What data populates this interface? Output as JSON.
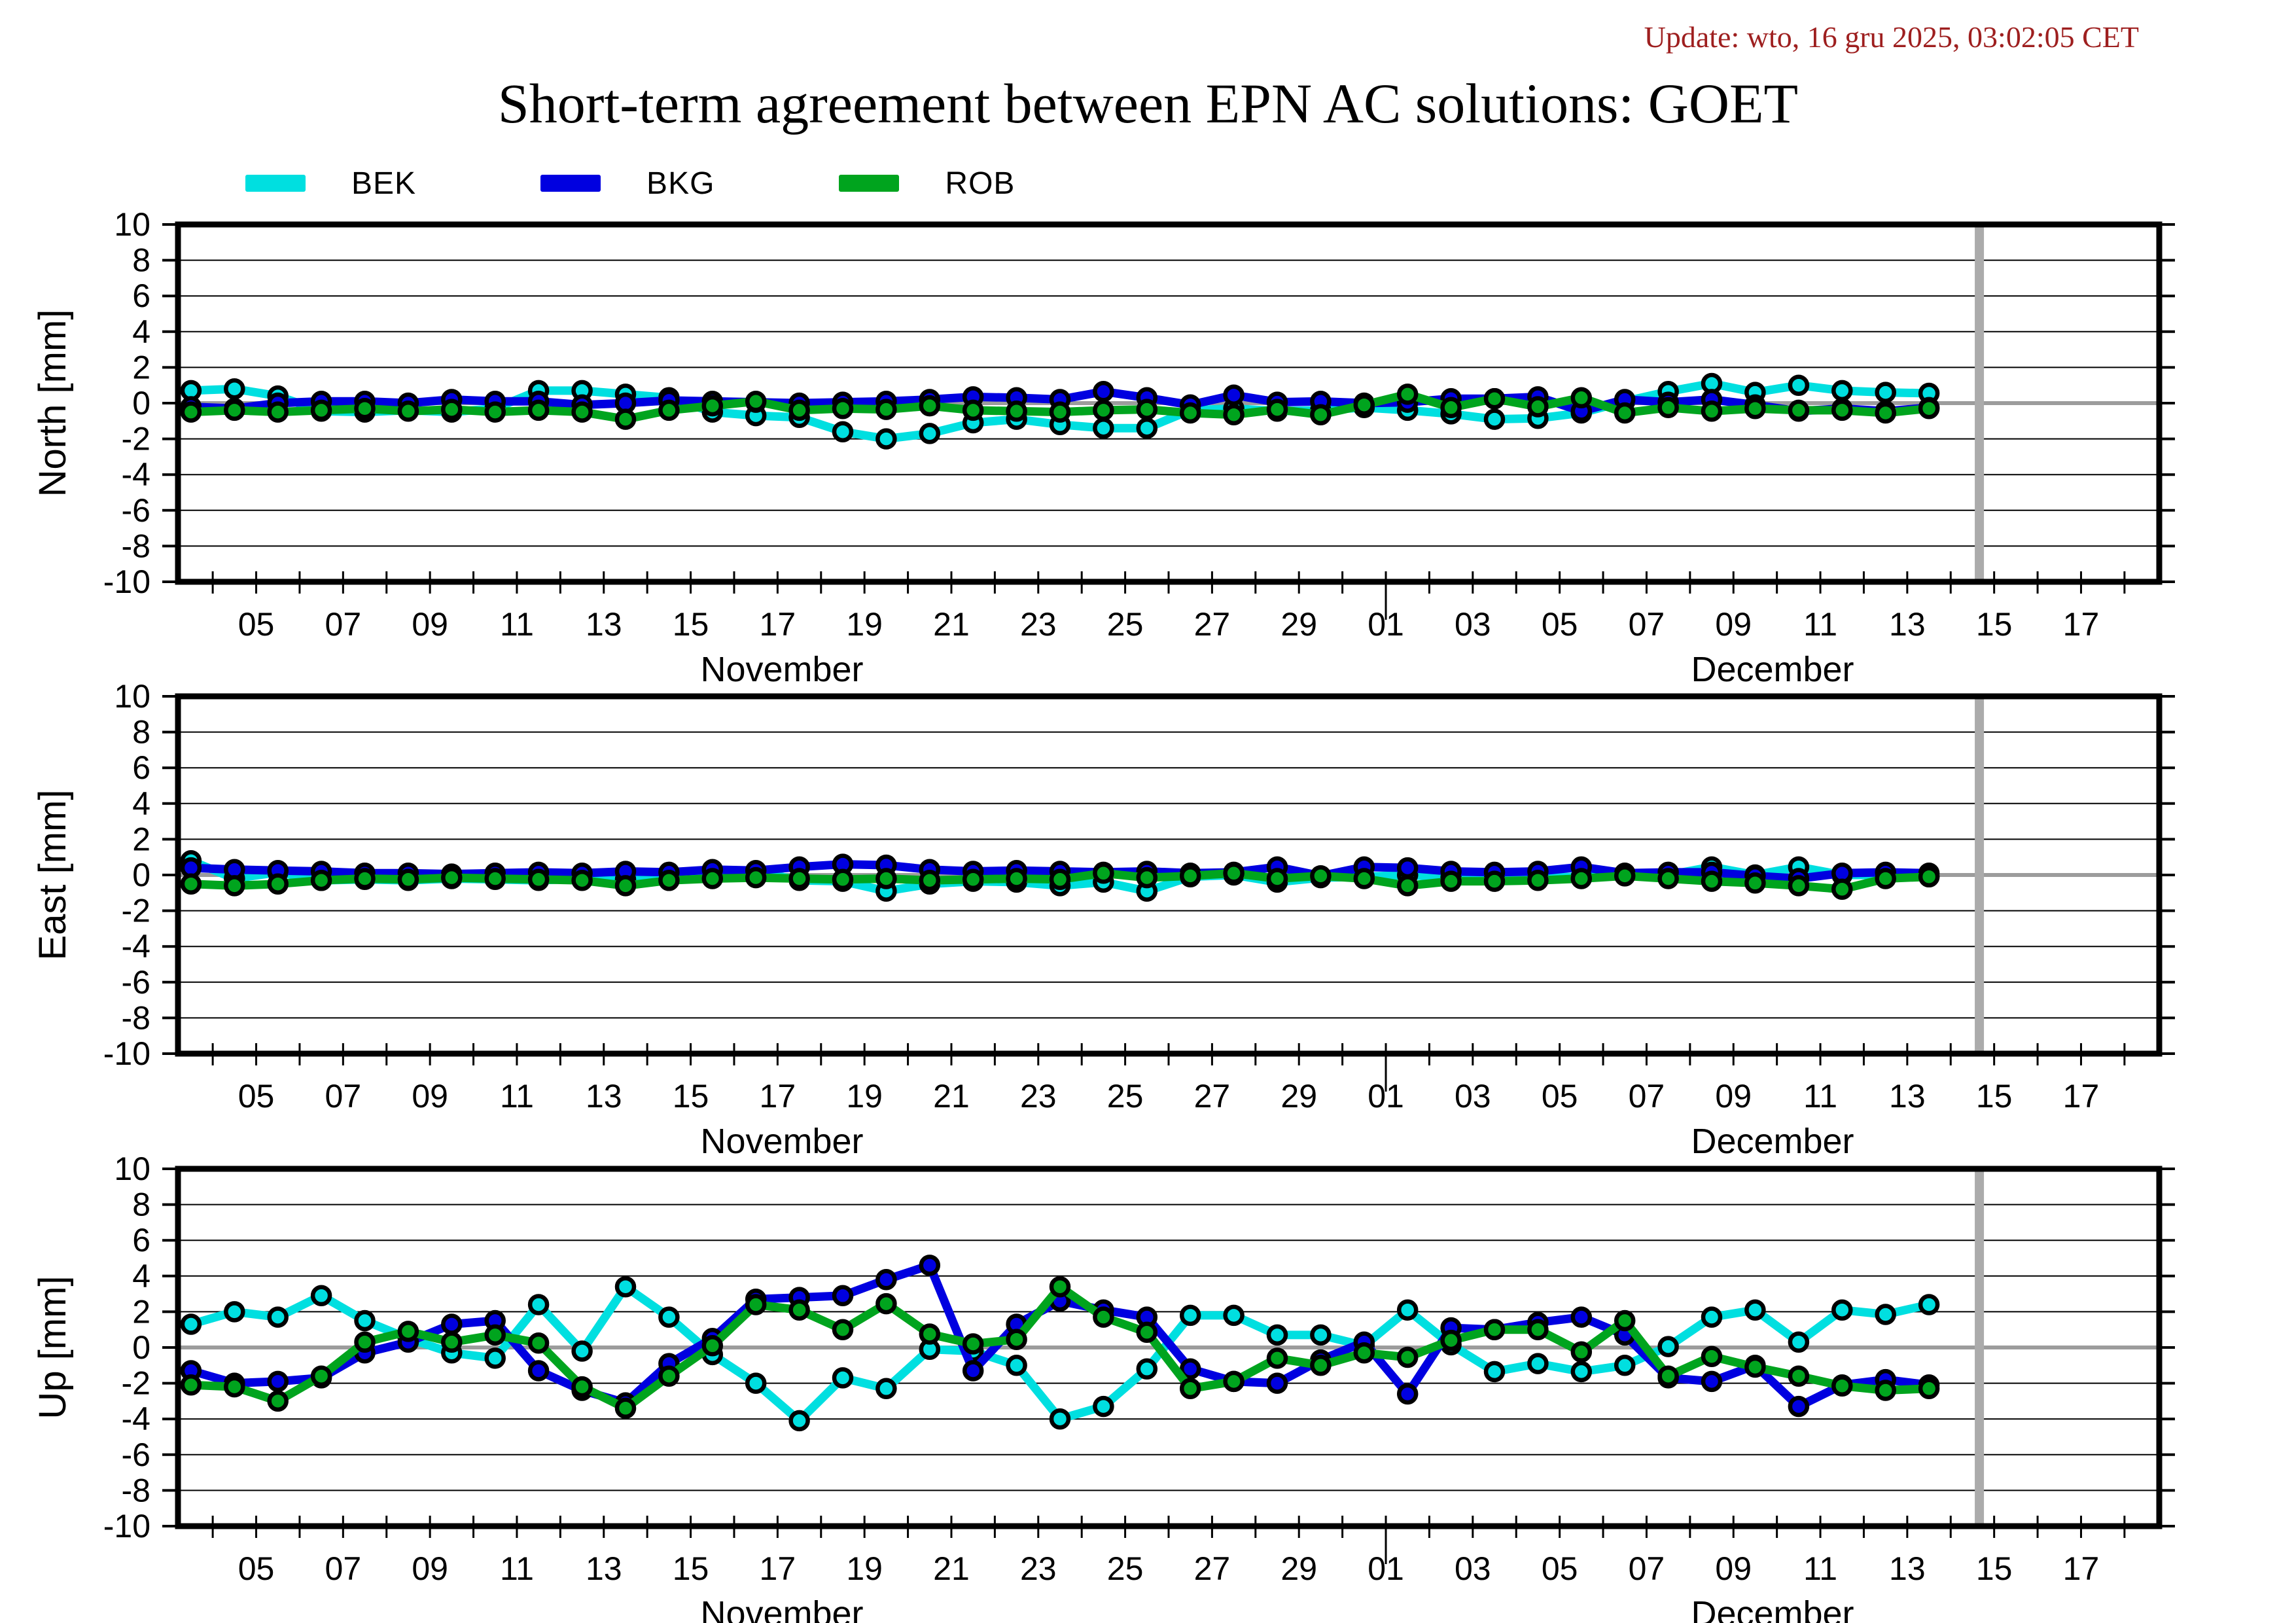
{
  "update_text": "Update: wto, 16 gru 2025, 03:02:05 CET",
  "title": "Short-term agreement between EPN AC solutions: GOET",
  "legend": [
    {
      "label": "BEK",
      "color": "#00dfe0"
    },
    {
      "label": "BKG",
      "color": "#0000e0"
    },
    {
      "label": "ROB",
      "color": "#00a41e"
    }
  ],
  "style": {
    "grid_color": "#000000",
    "zero_line_color": "#9c9c9c",
    "today_bar_color": "#ababab",
    "border_color": "#000000",
    "update_color": "#9e1f1f",
    "line_width": 13,
    "marker_radius": 13,
    "marker_stroke": 6.5
  },
  "xaxis": {
    "domain_days": [
      3.2,
      48.8
    ],
    "minor_tick_days_start": 4,
    "minor_tick_days_end": 48,
    "month_separator_day": 31,
    "today_bar_day": 44.66,
    "labeled_ticks": [
      {
        "day": 5,
        "label": "05"
      },
      {
        "day": 7,
        "label": "07"
      },
      {
        "day": 9,
        "label": "09"
      },
      {
        "day": 11,
        "label": "11"
      },
      {
        "day": 13,
        "label": "13"
      },
      {
        "day": 15,
        "label": "15"
      },
      {
        "day": 17,
        "label": "17"
      },
      {
        "day": 19,
        "label": "19"
      },
      {
        "day": 21,
        "label": "21"
      },
      {
        "day": 23,
        "label": "23"
      },
      {
        "day": 25,
        "label": "25"
      },
      {
        "day": 27,
        "label": "27"
      },
      {
        "day": 29,
        "label": "29"
      },
      {
        "day": 31,
        "label": "01"
      },
      {
        "day": 33,
        "label": "03"
      },
      {
        "day": 35,
        "label": "05"
      },
      {
        "day": 37,
        "label": "07"
      },
      {
        "day": 39,
        "label": "09"
      },
      {
        "day": 41,
        "label": "11"
      },
      {
        "day": 43,
        "label": "13"
      },
      {
        "day": 45,
        "label": "15"
      },
      {
        "day": 47,
        "label": "17"
      }
    ],
    "months": [
      {
        "label": "November",
        "center_day": 17.1
      },
      {
        "label": "December",
        "center_day": 39.9
      }
    ]
  },
  "chart_data": [
    {
      "type": "line",
      "id": "north",
      "ylabel": "North [mm]",
      "ylim": [
        -10,
        10
      ],
      "ytick_step": 2,
      "grid": true,
      "x_start_day": 3.5,
      "x_step": 1,
      "x_note": "day units: November day-of-month; 31.5 = Dec 01.5; data Nov 04 - Dec 14",
      "series": [
        {
          "name": "BEK",
          "values": [
            0.7,
            0.8,
            0.4,
            -0.45,
            -0.5,
            -0.4,
            -0.5,
            -0.3,
            0.7,
            0.7,
            0.5,
            0.3,
            -0.5,
            -0.7,
            -0.8,
            -1.6,
            -2.0,
            -1.7,
            -1.1,
            -0.9,
            -1.2,
            -1.4,
            -1.4,
            -0.4,
            -0.3,
            -0.45,
            -0.4,
            -0.25,
            -0.4,
            -0.6,
            -0.9,
            -0.85,
            -0.55,
            0.1,
            0.65,
            1.1,
            0.6,
            1.0,
            0.7,
            0.6,
            0.55
          ]
        },
        {
          "name": "BKG",
          "values": [
            -0.2,
            -0.3,
            0.0,
            0.1,
            0.1,
            0.0,
            0.2,
            0.1,
            0.1,
            -0.1,
            0.0,
            0.15,
            0.1,
            0.05,
            0.0,
            0.05,
            0.1,
            0.2,
            0.35,
            0.3,
            0.2,
            0.65,
            0.3,
            -0.1,
            0.45,
            0.05,
            0.1,
            0.0,
            0.05,
            0.25,
            0.25,
            0.35,
            -0.45,
            0.2,
            0.05,
            0.2,
            -0.1,
            -0.45,
            -0.3,
            -0.45,
            -0.25
          ]
        },
        {
          "name": "ROB",
          "values": [
            -0.5,
            -0.4,
            -0.5,
            -0.4,
            -0.3,
            -0.45,
            -0.35,
            -0.5,
            -0.4,
            -0.5,
            -0.9,
            -0.4,
            -0.15,
            0.1,
            -0.4,
            -0.3,
            -0.35,
            -0.15,
            -0.4,
            -0.45,
            -0.5,
            -0.4,
            -0.35,
            -0.55,
            -0.65,
            -0.35,
            -0.65,
            -0.1,
            0.5,
            -0.25,
            0.25,
            -0.2,
            0.3,
            -0.55,
            -0.25,
            -0.45,
            -0.3,
            -0.4,
            -0.4,
            -0.55,
            -0.3
          ]
        }
      ]
    },
    {
      "type": "line",
      "id": "east",
      "ylabel": "East [mm]",
      "ylim": [
        -10,
        10
      ],
      "ytick_step": 2,
      "grid": true,
      "x_start_day": 3.5,
      "x_step": 1,
      "series": [
        {
          "name": "BEK",
          "values": [
            0.8,
            -0.2,
            0.15,
            -0.3,
            -0.25,
            -0.3,
            -0.2,
            -0.25,
            -0.3,
            -0.2,
            -0.25,
            -0.3,
            -0.15,
            0.2,
            -0.3,
            -0.35,
            -0.9,
            -0.5,
            -0.35,
            -0.4,
            -0.6,
            -0.4,
            -0.9,
            -0.1,
            0.0,
            -0.4,
            -0.15,
            -0.1,
            0.0,
            -0.15,
            -0.2,
            -0.15,
            -0.1,
            0.0,
            0.0,
            0.45,
            0.0,
            0.45,
            0.0,
            0.0,
            -0.1
          ]
        },
        {
          "name": "BKG",
          "values": [
            0.4,
            0.3,
            0.25,
            0.2,
            0.1,
            0.1,
            0.05,
            0.1,
            0.15,
            0.1,
            0.2,
            0.15,
            0.3,
            0.25,
            0.45,
            0.6,
            0.55,
            0.3,
            0.2,
            0.25,
            0.2,
            0.15,
            0.2,
            0.1,
            0.15,
            0.45,
            -0.05,
            0.45,
            0.4,
            0.2,
            0.15,
            0.2,
            0.45,
            0.1,
            0.15,
            0.15,
            -0.05,
            -0.2,
            0.1,
            0.15,
            0.1
          ]
        },
        {
          "name": "ROB",
          "values": [
            -0.5,
            -0.6,
            -0.5,
            -0.3,
            -0.2,
            -0.25,
            -0.15,
            -0.2,
            -0.25,
            -0.3,
            -0.6,
            -0.3,
            -0.2,
            -0.15,
            -0.2,
            -0.25,
            -0.2,
            -0.3,
            -0.25,
            -0.2,
            -0.25,
            0.1,
            -0.15,
            -0.05,
            0.1,
            -0.2,
            -0.05,
            -0.2,
            -0.6,
            -0.35,
            -0.35,
            -0.3,
            -0.2,
            -0.05,
            -0.2,
            -0.35,
            -0.45,
            -0.6,
            -0.8,
            -0.2,
            -0.1
          ]
        }
      ]
    },
    {
      "type": "line",
      "id": "up",
      "ylabel": "Up [mm]",
      "ylim": [
        -10,
        10
      ],
      "ytick_step": 2,
      "grid": true,
      "x_start_day": 3.5,
      "x_step": 1,
      "series": [
        {
          "name": "BEK",
          "values": [
            1.3,
            2.0,
            1.7,
            2.9,
            1.5,
            0.5,
            -0.3,
            -0.6,
            2.4,
            -0.2,
            3.4,
            1.7,
            -0.4,
            -2.0,
            -4.1,
            -1.7,
            -2.3,
            -0.1,
            -0.2,
            -1.0,
            -4.0,
            -3.3,
            -1.2,
            1.8,
            1.8,
            0.7,
            0.7,
            0.1,
            2.1,
            0.15,
            -1.35,
            -0.9,
            -1.35,
            -1.0,
            0.05,
            1.7,
            2.1,
            0.3,
            2.1,
            1.85,
            2.4
          ]
        },
        {
          "name": "BKG",
          "values": [
            -1.3,
            -2.0,
            -1.9,
            -1.7,
            -0.3,
            0.3,
            1.3,
            1.5,
            -1.3,
            -2.4,
            -3.1,
            -0.9,
            0.5,
            2.7,
            2.8,
            2.9,
            3.8,
            4.6,
            -1.3,
            1.3,
            2.6,
            2.1,
            1.7,
            -1.2,
            -1.9,
            -2.0,
            -0.7,
            0.3,
            -2.6,
            1.1,
            1.0,
            1.4,
            1.7,
            0.7,
            -1.7,
            -1.9,
            -1.0,
            -3.3,
            -2.1,
            -1.8,
            -2.1
          ]
        },
        {
          "name": "ROB",
          "values": [
            -2.1,
            -2.2,
            -3.0,
            -1.6,
            0.3,
            0.9,
            0.3,
            0.7,
            0.25,
            -2.2,
            -3.4,
            -1.6,
            0.1,
            2.4,
            2.1,
            1.0,
            2.45,
            0.75,
            0.2,
            0.45,
            3.4,
            1.7,
            0.85,
            -2.3,
            -1.9,
            -0.6,
            -1.0,
            -0.3,
            -0.55,
            0.4,
            1.0,
            1.0,
            -0.25,
            1.5,
            -1.6,
            -0.5,
            -1.1,
            -1.6,
            -2.15,
            -2.4,
            -2.3
          ]
        }
      ]
    }
  ]
}
